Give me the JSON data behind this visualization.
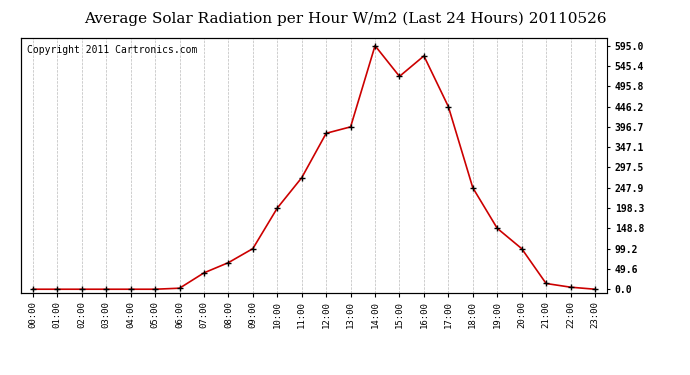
{
  "title": "Average Solar Radiation per Hour W/m2 (Last 24 Hours) 20110526",
  "copyright": "Copyright 2011 Cartronics.com",
  "x_labels": [
    "00:00",
    "01:00",
    "02:00",
    "03:00",
    "04:00",
    "05:00",
    "06:00",
    "07:00",
    "08:00",
    "09:00",
    "10:00",
    "11:00",
    "12:00",
    "13:00",
    "14:00",
    "15:00",
    "16:00",
    "17:00",
    "18:00",
    "19:00",
    "20:00",
    "21:00",
    "22:00",
    "23:00"
  ],
  "y_values": [
    0.0,
    0.0,
    0.0,
    0.0,
    0.0,
    0.0,
    2.5,
    40.0,
    65.0,
    99.2,
    198.3,
    272.5,
    381.0,
    396.7,
    595.0,
    520.0,
    570.0,
    446.2,
    247.9,
    148.8,
    99.2,
    14.0,
    5.0,
    0.0
  ],
  "line_color": "#cc0000",
  "marker_color": "#000000",
  "bg_color": "#ffffff",
  "grid_color": "#bbbbbb",
  "title_fontsize": 11,
  "copyright_fontsize": 7,
  "ytick_labels": [
    "0.0",
    "49.6",
    "99.2",
    "148.8",
    "198.3",
    "247.9",
    "297.5",
    "347.1",
    "396.7",
    "446.2",
    "495.8",
    "545.4",
    "595.0"
  ],
  "ytick_values": [
    0.0,
    49.6,
    99.2,
    148.8,
    198.3,
    247.9,
    297.5,
    347.1,
    396.7,
    446.2,
    495.8,
    545.4,
    595.0
  ],
  "ymax": 615.0,
  "ymin": -8.0
}
